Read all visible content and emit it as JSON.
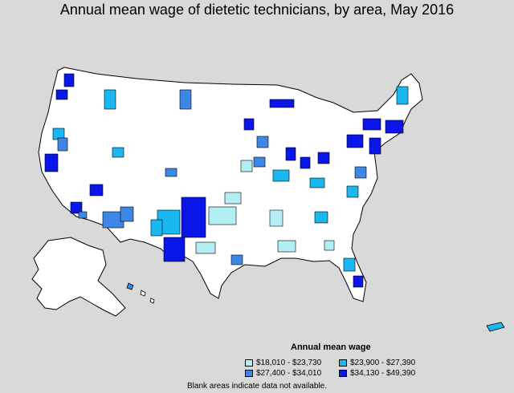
{
  "title": "Annual mean wage of dietetic technicians, by area, May 2016",
  "legend": {
    "title": "Annual mean wage",
    "items": [
      {
        "label": "$18,010 - $23,730",
        "color": "#b3eef2"
      },
      {
        "label": "$23,900 - $27,390",
        "color": "#1ab8f0"
      },
      {
        "label": "$27,400 - $34,010",
        "color": "#3d87e6"
      },
      {
        "label": "$34,130 - $49,390",
        "color": "#0a16e8"
      }
    ]
  },
  "footnote": "Blank areas indicate data not available.",
  "colors": {
    "background": "#d9d9d9",
    "blank": "#ffffff",
    "border": "#000000"
  }
}
